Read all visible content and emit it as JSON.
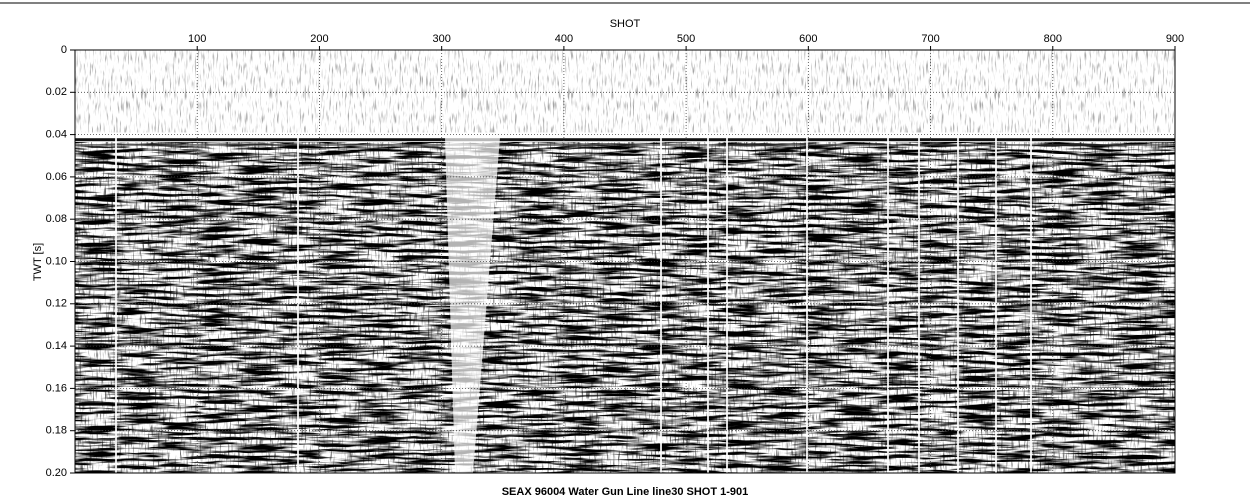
{
  "chart_data": {
    "type": "seismic",
    "title": "SEAX 96004 Water Gun Line line30 SHOT 1-901",
    "x_label": "SHOT",
    "y_label": "TWT [s]",
    "xlim": [
      0,
      900
    ],
    "xticks": [
      100,
      200,
      300,
      400,
      500,
      600,
      700,
      800,
      900
    ],
    "ylim": [
      0,
      0.2
    ],
    "yticks": [
      0,
      0.02,
      0.04,
      0.06,
      0.08,
      {
        "value": 0.1,
        "label": "0.10"
      },
      0.12,
      0.14,
      0.16,
      0.18,
      {
        "value": 0.2,
        "label": "0.20"
      }
    ],
    "grid": true
  }
}
